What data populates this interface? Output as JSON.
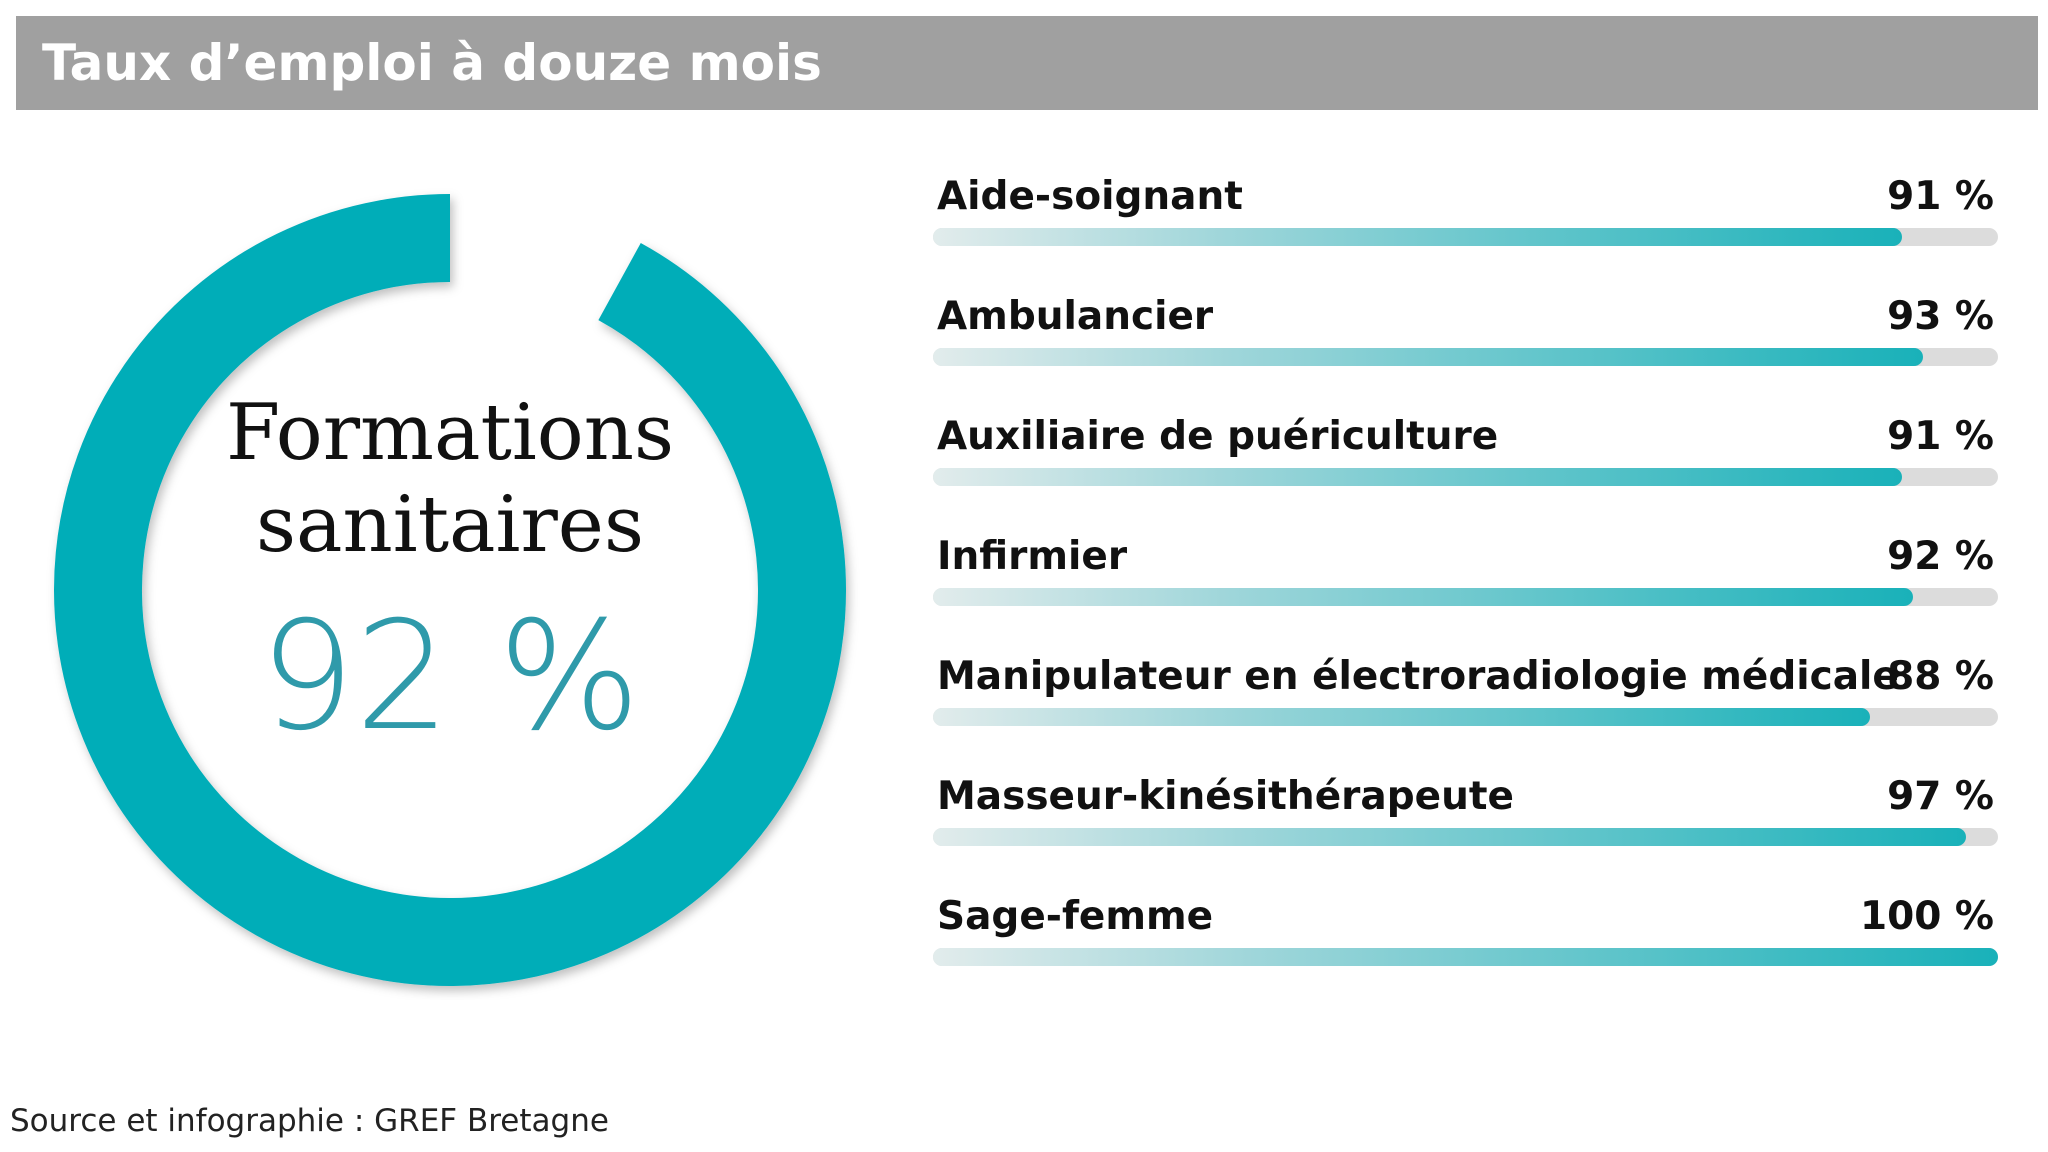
{
  "title": "Taux d’emploi à douze mois",
  "donut": {
    "label_line1": "Formations",
    "label_line2": "sanitaires",
    "value": 92,
    "value_text": "92 %",
    "color": "#00adb8"
  },
  "chart_data": {
    "type": "bar",
    "orientation": "horizontal",
    "title": "Taux d’emploi à douze mois",
    "categories": [
      "Aide-soignant",
      "Ambulancier",
      "Auxiliaire de puériculture",
      "Infirmier",
      "Manipulateur en électroradiologie médicale",
      "Masseur-kinésithérapeute",
      "Sage-femme"
    ],
    "values": [
      91,
      93,
      91,
      92,
      88,
      97,
      100
    ],
    "value_labels": [
      "91 %",
      "93 %",
      "91 %",
      "92 %",
      "88 %",
      "97 %",
      "100 %"
    ],
    "xlim": [
      0,
      100
    ],
    "unit": "%"
  },
  "colors": {
    "accent": "#00adb8",
    "header_bg": "#a0a0a0",
    "track": "#dcdcdc"
  },
  "source": "Source et infographie : GREF Bretagne"
}
